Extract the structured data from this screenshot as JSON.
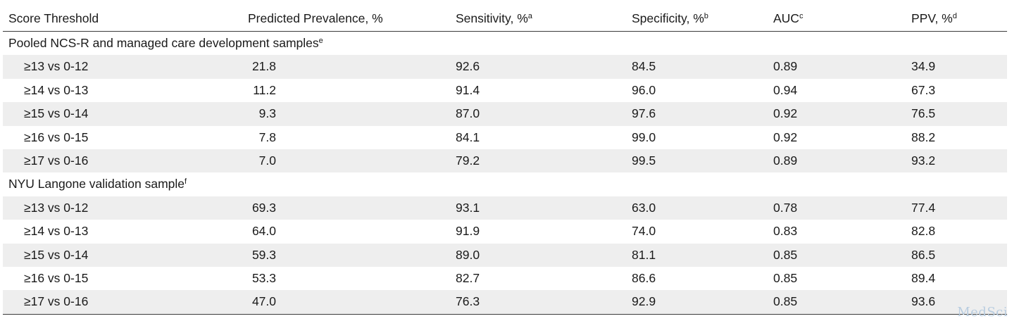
{
  "table": {
    "headers": {
      "c0": "Score Threshold",
      "c1": "Predicted Prevalence, %",
      "c2": "Sensitivity, %",
      "c2_sup": "a",
      "c3": "Specificity, %",
      "c3_sup": "b",
      "c4": "AUC",
      "c4_sup": "c",
      "c5": "PPV, %",
      "c5_sup": "d"
    },
    "sections": [
      {
        "title": "Pooled NCS-R and managed care development samples",
        "title_sup": "e",
        "rows": [
          [
            "≥13 vs 0-12",
            "21.8",
            "92.6",
            "84.5",
            "0.89",
            "34.9"
          ],
          [
            "≥14 vs 0-13",
            "11.2",
            "91.4",
            "96.0",
            "0.94",
            "67.3"
          ],
          [
            "≥15 vs 0-14",
            "9.3",
            "87.0",
            "97.6",
            "0.92",
            "76.5"
          ],
          [
            "≥16 vs 0-15",
            "7.8",
            "84.1",
            "99.0",
            "0.92",
            "88.2"
          ],
          [
            "≥17 vs 0-16",
            "7.0",
            "79.2",
            "99.5",
            "0.89",
            "93.2"
          ]
        ]
      },
      {
        "title": "NYU Langone validation sample",
        "title_sup": "f",
        "rows": [
          [
            "≥13 vs 0-12",
            "69.3",
            "93.1",
            "63.0",
            "0.78",
            "77.4"
          ],
          [
            "≥14 vs 0-13",
            "64.0",
            "91.9",
            "74.0",
            "0.83",
            "82.8"
          ],
          [
            "≥15 vs 0-14",
            "59.3",
            "89.0",
            "81.1",
            "0.85",
            "86.5"
          ],
          [
            "≥16 vs 0-15",
            "53.3",
            "82.7",
            "86.6",
            "0.85",
            "89.4"
          ],
          [
            "≥17 vs 0-16",
            "47.0",
            "76.3",
            "92.9",
            "0.85",
            "93.6"
          ]
        ]
      }
    ]
  },
  "watermark": "MedSci"
}
